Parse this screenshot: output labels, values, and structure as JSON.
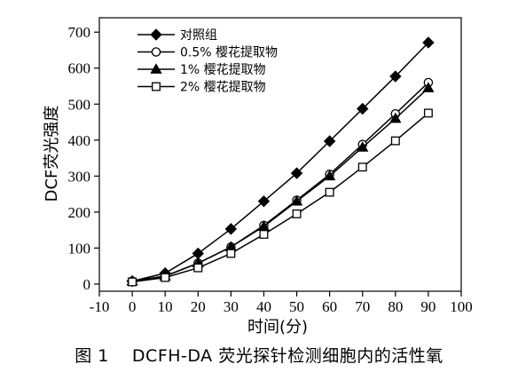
{
  "caption": "图 1　 DCFH-DA 荧光探针检测细胞内的活性氧",
  "chart_data": {
    "type": "line",
    "xlabel": "时间(分)",
    "ylabel": "DCF荧光强度",
    "xlim": [
      -10,
      100
    ],
    "ylim": [
      -20,
      740
    ],
    "xticks": [
      -10,
      0,
      10,
      20,
      30,
      40,
      50,
      60,
      70,
      80,
      90,
      100
    ],
    "yticks": [
      0,
      100,
      200,
      300,
      400,
      500,
      600,
      700
    ],
    "legend_position": "top-left",
    "x": [
      0,
      10,
      20,
      30,
      40,
      50,
      60,
      70,
      80,
      90
    ],
    "series": [
      {
        "name": "对照组",
        "marker": "filled-diamond",
        "color": "#000000",
        "values": [
          8,
          30,
          85,
          153,
          230,
          308,
          397,
          487,
          577,
          671
        ]
      },
      {
        "name": "0.5% 樱花提取物",
        "marker": "open-circle",
        "color": "#000000",
        "values": [
          8,
          22,
          58,
          103,
          163,
          233,
          305,
          388,
          473,
          560
        ]
      },
      {
        "name": "1% 樱花提取物",
        "marker": "filled-triangle",
        "color": "#000000",
        "values": [
          8,
          22,
          58,
          103,
          160,
          230,
          300,
          380,
          460,
          545
        ]
      },
      {
        "name": "2% 樱花提取物",
        "marker": "open-square",
        "color": "#000000",
        "values": [
          6,
          18,
          45,
          85,
          138,
          195,
          255,
          325,
          398,
          475
        ]
      }
    ]
  }
}
